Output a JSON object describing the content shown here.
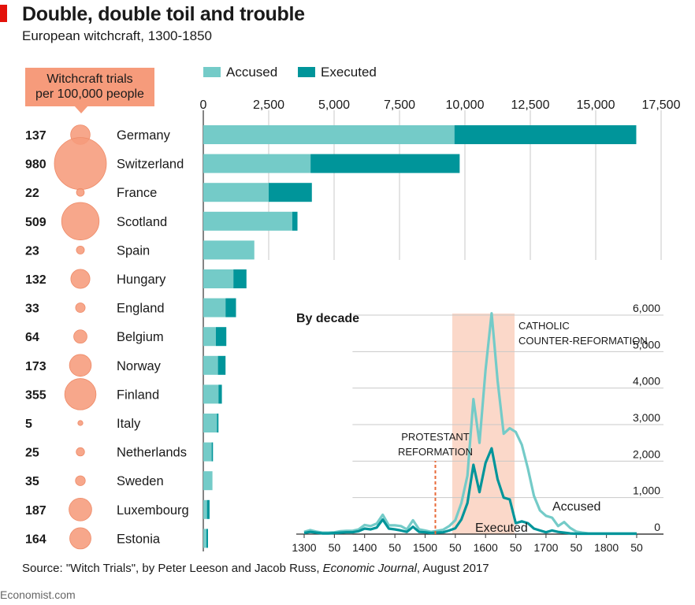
{
  "header": {
    "title": "Double, double toil and trouble",
    "subtitle": "European witchcraft, 1300-1850"
  },
  "callout": {
    "line1": "Witchcraft trials",
    "line2": "per 100,000 people"
  },
  "legend": {
    "accused": "Accused",
    "executed": "Executed"
  },
  "colors": {
    "accused": "#74cbc8",
    "executed": "#00959a",
    "bubble": "#f69b7b",
    "shade": "#fbd8c9",
    "brand_red": "#e3120b",
    "reformation_line": "#e86b3a"
  },
  "source": {
    "prefix": "Source: \"Witch Trials\", by Peter Leeson and Jacob Russ, ",
    "journal": "Economic Journal",
    "suffix": ", August 2017"
  },
  "brand": "Economist.com",
  "chart_data": [
    {
      "type": "bar",
      "stacked": true,
      "categories": [
        "Germany",
        "Switzerland",
        "France",
        "Scotland",
        "Spain",
        "Hungary",
        "England",
        "Belgium",
        "Norway",
        "Finland",
        "Italy",
        "Netherlands",
        "Sweden",
        "Luxembourg",
        "Estonia"
      ],
      "trials_per_100k": [
        137,
        980,
        22,
        509,
        23,
        132,
        33,
        64,
        173,
        355,
        5,
        25,
        35,
        187,
        164
      ],
      "series": [
        {
          "name": "Accused",
          "values": [
            9600,
            4100,
            2500,
            3400,
            1950,
            1150,
            850,
            480,
            560,
            580,
            520,
            320,
            350,
            140,
            120
          ]
        },
        {
          "name": "Executed",
          "values": [
            6950,
            5700,
            1650,
            200,
            0,
            500,
            400,
            400,
            290,
            130,
            60,
            50,
            0,
            100,
            60
          ]
        }
      ],
      "xticks": [
        "0",
        "2,500",
        "5,000",
        "7,500",
        "10,000",
        "12,500",
        "15,000",
        "17,500"
      ],
      "xlim": [
        0,
        17500
      ],
      "grid": true,
      "legend_position": "top"
    },
    {
      "type": "line",
      "title": "By decade",
      "xticks": [
        "1300",
        "50",
        "1400",
        "50",
        "1500",
        "50",
        "1600",
        "50",
        "1700",
        "50",
        "1800",
        "50"
      ],
      "yticks": [
        "6,000",
        "5,000",
        "4,000",
        "3,000",
        "2,000",
        "1,000",
        "0"
      ],
      "ylim": [
        0,
        6000
      ],
      "xlim": [
        1300,
        1850
      ],
      "series": [
        {
          "name": "Accused",
          "x": [
            1300,
            1310,
            1320,
            1330,
            1340,
            1350,
            1360,
            1370,
            1380,
            1390,
            1400,
            1410,
            1420,
            1430,
            1440,
            1450,
            1460,
            1470,
            1480,
            1490,
            1500,
            1510,
            1520,
            1530,
            1540,
            1550,
            1560,
            1570,
            1580,
            1590,
            1600,
            1610,
            1620,
            1630,
            1640,
            1650,
            1660,
            1670,
            1680,
            1690,
            1700,
            1710,
            1720,
            1730,
            1740,
            1750,
            1760,
            1770,
            1780,
            1790,
            1800,
            1810,
            1820,
            1830,
            1840,
            1850
          ],
          "values": [
            60,
            110,
            70,
            40,
            40,
            50,
            80,
            90,
            90,
            130,
            250,
            220,
            290,
            530,
            240,
            240,
            220,
            130,
            380,
            130,
            100,
            60,
            90,
            120,
            220,
            380,
            850,
            1600,
            3700,
            2500,
            4500,
            6050,
            4200,
            2750,
            2900,
            2800,
            2450,
            1800,
            1050,
            650,
            500,
            450,
            220,
            330,
            170,
            70,
            40,
            20,
            20,
            20,
            20,
            20,
            20,
            20,
            20,
            20
          ]
        },
        {
          "name": "Executed",
          "x": [
            1300,
            1310,
            1320,
            1330,
            1340,
            1350,
            1360,
            1370,
            1380,
            1390,
            1400,
            1410,
            1420,
            1430,
            1440,
            1450,
            1460,
            1470,
            1480,
            1490,
            1500,
            1510,
            1520,
            1530,
            1540,
            1550,
            1560,
            1570,
            1580,
            1590,
            1600,
            1610,
            1620,
            1630,
            1640,
            1650,
            1660,
            1670,
            1680,
            1690,
            1700,
            1710,
            1720,
            1730,
            1740,
            1750,
            1760,
            1770,
            1780,
            1790,
            1800,
            1810,
            1820,
            1830,
            1840,
            1850
          ],
          "values": [
            30,
            60,
            40,
            20,
            20,
            30,
            40,
            50,
            50,
            80,
            150,
            130,
            180,
            400,
            150,
            130,
            100,
            60,
            200,
            60,
            50,
            30,
            40,
            50,
            100,
            160,
            400,
            850,
            1900,
            1150,
            1950,
            2350,
            1500,
            1000,
            950,
            300,
            350,
            300,
            150,
            100,
            50,
            100,
            60,
            40,
            20,
            10,
            10,
            10,
            10,
            10,
            10,
            10,
            10,
            10,
            10,
            10
          ]
        }
      ],
      "annotations": [
        {
          "text_lines": [
            "PROTESTANT",
            "REFORMATION"
          ],
          "year": 1517
        },
        {
          "text_lines": [
            "CATHOLIC",
            "COUNTER-REFORMATION"
          ],
          "span": [
            1545,
            1648
          ]
        },
        {
          "text": "Accused"
        },
        {
          "text": "Executed"
        }
      ]
    }
  ]
}
